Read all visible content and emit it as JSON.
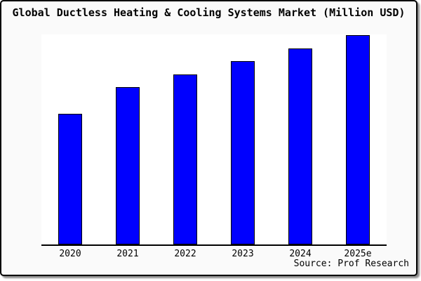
{
  "chart_data": {
    "type": "bar",
    "title": "Global Ductless Heating & Cooling Systems Market (Million USD)",
    "categories": [
      "2020",
      "2021",
      "2022",
      "2023",
      "2024",
      "2025e"
    ],
    "values": [
      62.4,
      75.0,
      81.2,
      87.6,
      93.6,
      100.0
    ],
    "xlabel": "",
    "ylabel": "",
    "ylim": [
      0,
      100
    ],
    "y_axis_visible": false,
    "grid": false,
    "legend": false,
    "note": "values are relative bar heights (% of tallest bar); no y-axis scale shown in image",
    "colors": {
      "bar_fill": "#0000fe",
      "bar_border": "#000000",
      "axis": "#000000",
      "plot_background": "#ffffff",
      "page_background": "#fafafa",
      "card_border": "#000000",
      "text": "#000000"
    }
  },
  "source_note": "Source: Prof Research"
}
